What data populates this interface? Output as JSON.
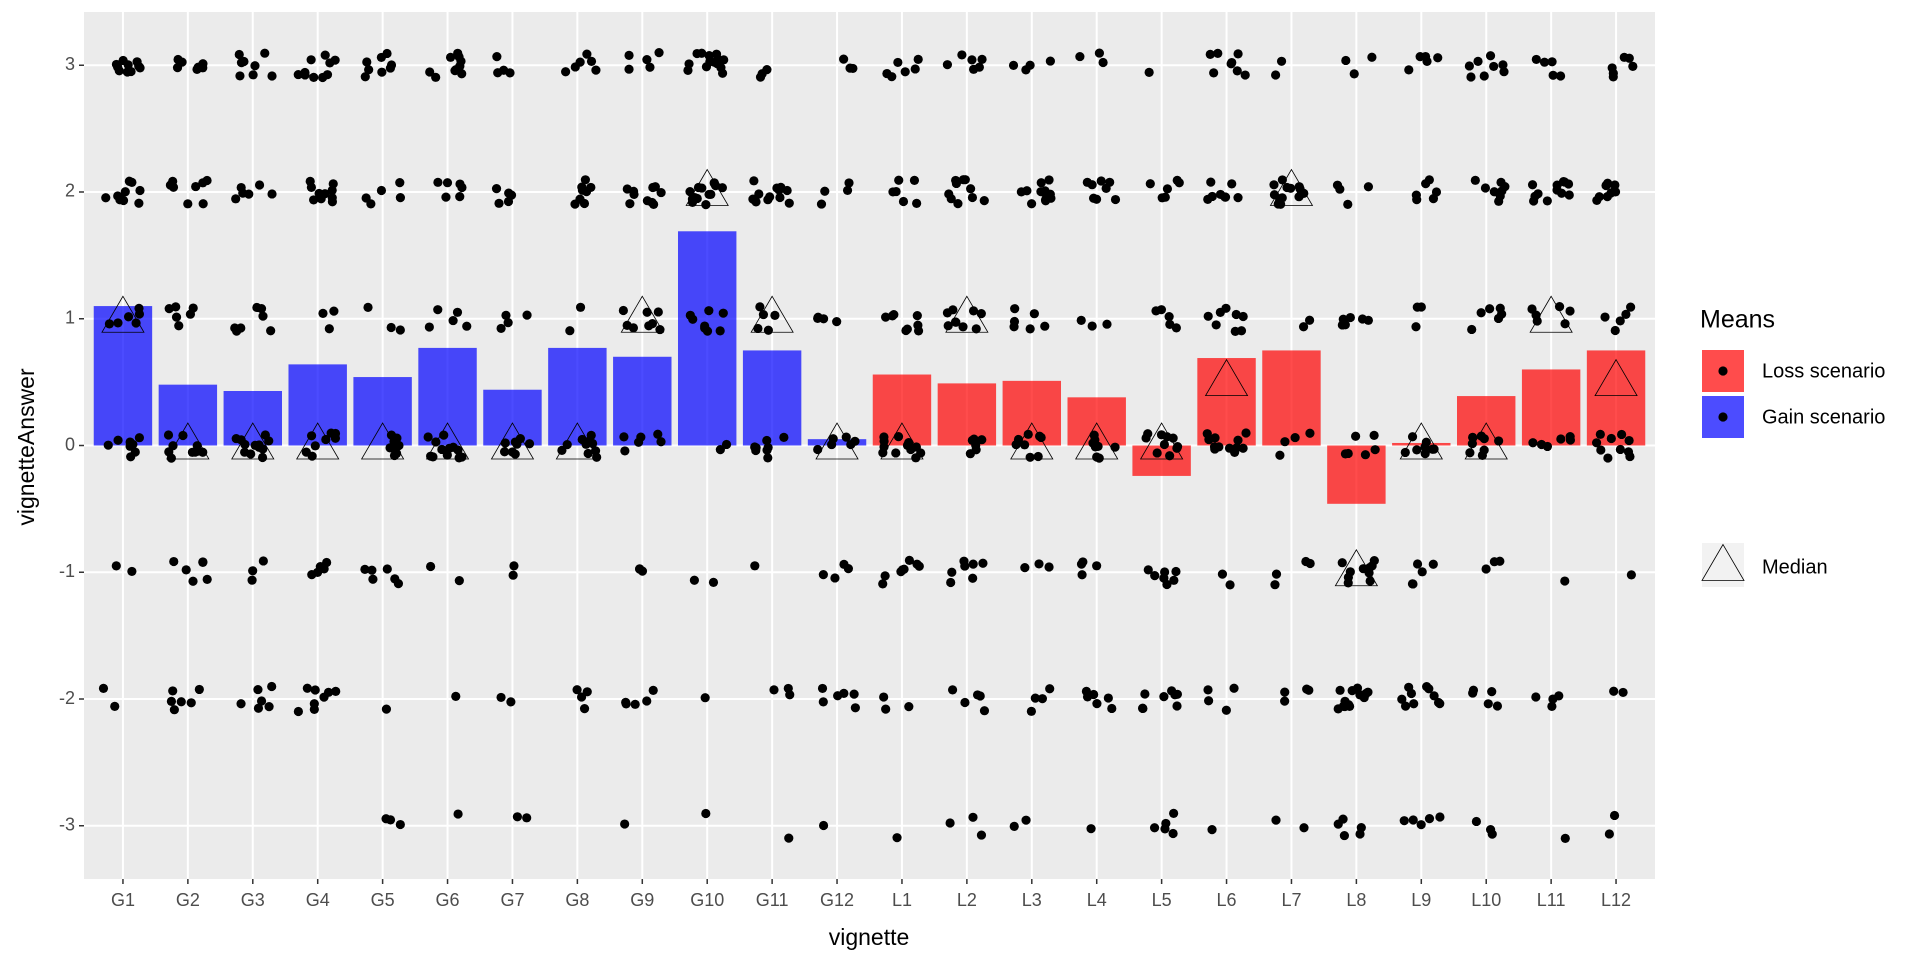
{
  "chart_data": {
    "type": "bar",
    "x_label": "vignette",
    "y_label": "vignetteAnswer",
    "legend_title": "Means",
    "categories": [
      "G1",
      "G2",
      "G3",
      "G4",
      "G5",
      "G6",
      "G7",
      "G8",
      "G9",
      "G10",
      "G11",
      "G12",
      "L1",
      "L2",
      "L3",
      "L4",
      "L5",
      "L6",
      "L7",
      "L8",
      "L9",
      "L10",
      "L11",
      "L12"
    ],
    "series": [
      {
        "name": "Loss scenario",
        "color": "#ff0000",
        "values": [
          null,
          null,
          null,
          null,
          null,
          null,
          null,
          null,
          null,
          null,
          null,
          null,
          0.56,
          0.49,
          0.51,
          0.38,
          -0.24,
          0.69,
          0.75,
          -0.46,
          0.02,
          0.39,
          0.6,
          0.75
        ]
      },
      {
        "name": "Gain scenario",
        "color": "#0000ff",
        "values": [
          1.1,
          0.48,
          0.43,
          0.64,
          0.54,
          0.77,
          0.44,
          0.77,
          0.7,
          1.69,
          0.75,
          0.05,
          null,
          null,
          null,
          null,
          null,
          null,
          null,
          null,
          null,
          null,
          null,
          null
        ]
      }
    ],
    "medians": {
      "name": "Median",
      "values": [
        1,
        0,
        0,
        0,
        0,
        0,
        0,
        0,
        1,
        2,
        1,
        0,
        0,
        1,
        0,
        0,
        0,
        0.5,
        2,
        -1,
        0,
        0,
        1,
        0.5
      ]
    },
    "counts": [
      [
        0,
        2,
        2,
        8,
        6,
        10,
        10
      ],
      [
        0,
        6,
        6,
        10,
        6,
        8,
        7
      ],
      [
        0,
        6,
        3,
        12,
        8,
        6,
        8
      ],
      [
        0,
        8,
        5,
        8,
        3,
        10,
        10
      ],
      [
        3,
        1,
        6,
        8,
        3,
        5,
        8
      ],
      [
        1,
        1,
        2,
        12,
        5,
        6,
        10
      ],
      [
        2,
        2,
        2,
        8,
        4,
        5,
        4
      ],
      [
        0,
        4,
        0,
        10,
        2,
        8,
        6
      ],
      [
        1,
        5,
        3,
        6,
        8,
        10,
        5
      ],
      [
        1,
        1,
        2,
        2,
        8,
        14,
        14
      ],
      [
        1,
        3,
        1,
        8,
        5,
        12,
        3
      ],
      [
        1,
        6,
        4,
        6,
        4,
        4,
        3
      ],
      [
        1,
        3,
        8,
        12,
        8,
        6,
        6
      ],
      [
        3,
        5,
        7,
        6,
        9,
        10,
        6
      ],
      [
        2,
        4,
        3,
        8,
        6,
        12,
        4
      ],
      [
        1,
        6,
        4,
        8,
        3,
        8,
        3
      ],
      [
        5,
        8,
        7,
        10,
        5,
        6,
        1
      ],
      [
        1,
        4,
        2,
        12,
        8,
        8,
        8
      ],
      [
        2,
        4,
        4,
        4,
        2,
        14,
        2
      ],
      [
        5,
        14,
        10,
        6,
        6,
        4,
        3
      ],
      [
        5,
        10,
        5,
        8,
        3,
        6,
        5
      ],
      [
        3,
        5,
        3,
        8,
        6,
        8,
        8
      ],
      [
        1,
        4,
        1,
        6,
        6,
        12,
        5
      ],
      [
        2,
        2,
        1,
        10,
        5,
        10,
        6
      ]
    ],
    "ylim": [
      -3.42,
      3.42
    ],
    "yticks": [
      -3,
      -2,
      -1,
      0,
      1,
      2,
      3
    ],
    "grid": true
  }
}
